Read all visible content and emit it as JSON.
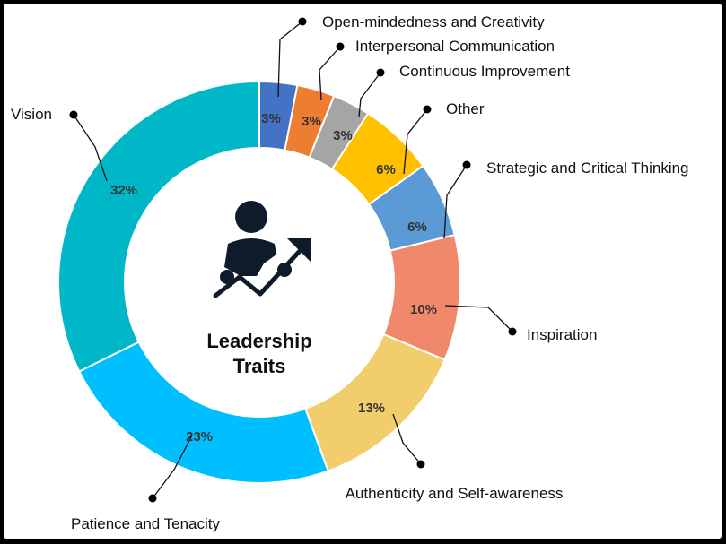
{
  "chart_data": {
    "type": "pie",
    "title": "Leadership Traits",
    "slices": [
      {
        "label": "Open-mindedness and Creativity",
        "value": 3,
        "value_label": "3%",
        "color": "#4472C4"
      },
      {
        "label": "Interpersonal Communication",
        "value": 3,
        "value_label": "3%",
        "color": "#ED7D31"
      },
      {
        "label": "Continuous Improvement",
        "value": 3,
        "value_label": "3%",
        "color": "#A5A5A5"
      },
      {
        "label": "Other",
        "value": 6,
        "value_label": "6%",
        "color": "#FFC000"
      },
      {
        "label": "Strategic and Critical Thinking",
        "value": 6,
        "value_label": "6%",
        "color": "#5B9BD5"
      },
      {
        "label": "Inspiration",
        "value": 10,
        "value_label": "10%",
        "color": "#F0896B"
      },
      {
        "label": "Authenticity and Self-awareness",
        "value": 13,
        "value_label": "13%",
        "color": "#F2CD6B"
      },
      {
        "label": "Patience and Tenacity",
        "value": 23,
        "value_label": "23%",
        "color": "#00BFFF"
      },
      {
        "label": "Vision",
        "value": 32,
        "value_label": "32%",
        "color": "#00B7C7"
      }
    ],
    "center_text": [
      "Leadership",
      "Traits"
    ],
    "center_icon": "leader-growth-icon"
  }
}
